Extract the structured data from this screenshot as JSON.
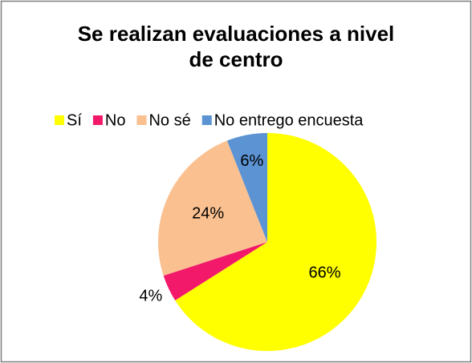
{
  "chart_data": {
    "type": "pie",
    "title": "Se realizan evaluaciones a nivel de centro",
    "categories": [
      "Sí",
      "No",
      "No sé",
      "No entrego encuesta"
    ],
    "values": [
      66,
      4,
      24,
      6
    ],
    "value_labels": [
      "66%",
      "4%",
      "24%",
      "6%"
    ],
    "colors": [
      "#ffff00",
      "#f2196b",
      "#fac090",
      "#5b93d3"
    ],
    "legend": "top"
  }
}
